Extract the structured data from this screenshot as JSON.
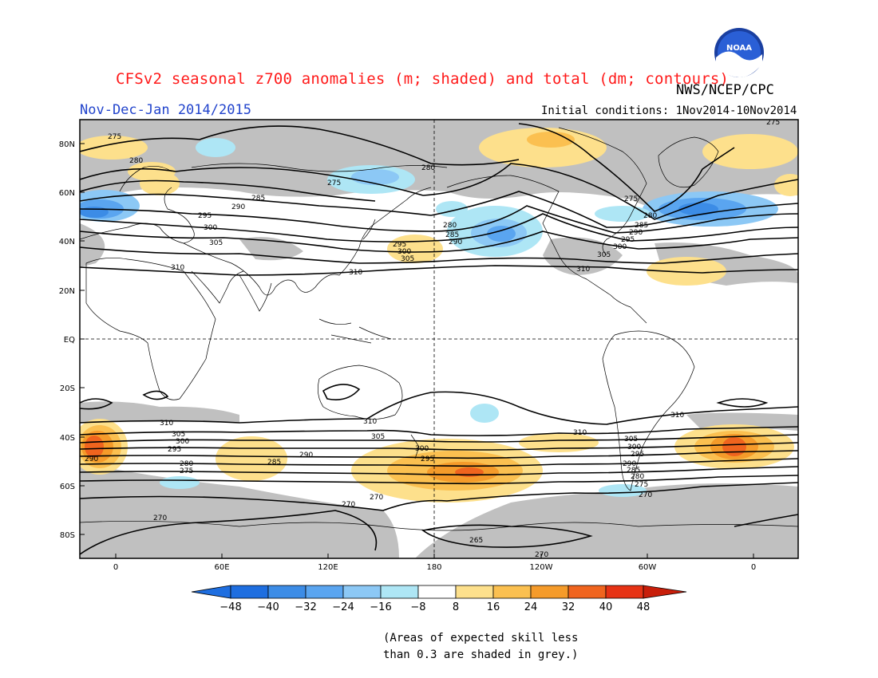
{
  "header": {
    "title": "CFSv2 seasonal z700 anomalies (m; shaded) and total (dm; contours)",
    "agency": "NWS/NCEP/CPC",
    "period": "Nov-Dec-Jan 2014/2015",
    "initial_conditions": "Initial conditions: 1Nov2014-10Nov2014",
    "logo_text": "NOAA"
  },
  "map": {
    "projection": "cylindrical equidistant",
    "lat_ticks": [
      "80N",
      "60N",
      "40N",
      "20N",
      "EQ",
      "20S",
      "40S",
      "60S",
      "80S"
    ],
    "lon_ticks": [
      "0",
      "60E",
      "120E",
      "180",
      "120W",
      "60W",
      "0"
    ],
    "contour_values": [
      "275",
      "280",
      "285",
      "290",
      "295",
      "300",
      "305",
      "310",
      "270",
      "265"
    ],
    "colors": {
      "skill_mask": "#c0c0c0",
      "neg48": "#1e6ee0",
      "neg40": "#3c8ce6",
      "neg32": "#5aa5f0",
      "neg24": "#8cc8f5",
      "neg16": "#aee6f5",
      "neutral": "#ffffff",
      "pos8": "#fde08c",
      "pos16": "#fbc050",
      "pos24": "#f59b2a",
      "pos32": "#f0641e",
      "pos40": "#e63214",
      "pos48": "#c81e0a"
    }
  },
  "colorbar": {
    "labels": [
      "−48",
      "−40",
      "−32",
      "−24",
      "−16",
      "−8",
      "8",
      "16",
      "24",
      "32",
      "40",
      "48"
    ],
    "colors": [
      "#1e6ee0",
      "#3c8ce6",
      "#5aa5f0",
      "#8cc8f5",
      "#aee6f5",
      "#d8f3f8",
      "#ffffff",
      "#fde08c",
      "#fbc050",
      "#f59b2a",
      "#f0641e",
      "#e63214",
      "#c81e0a"
    ]
  },
  "footnote": {
    "line1": "(Areas of expected skill less",
    "line2": "than 0.3 are shaded in grey.)"
  }
}
